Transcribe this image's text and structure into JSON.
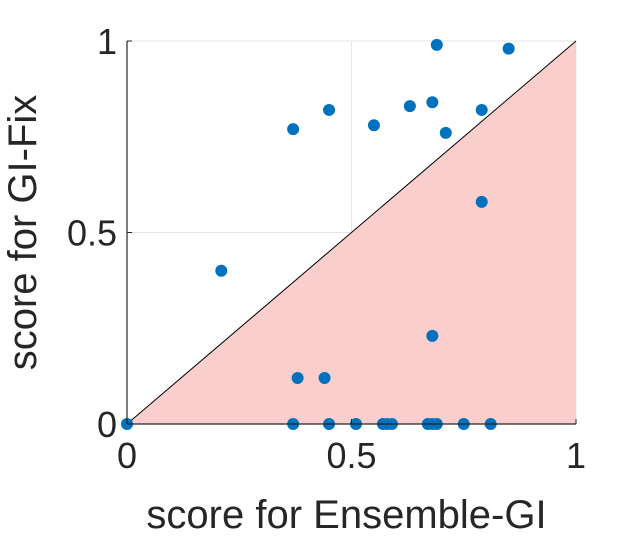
{
  "chart_data": {
    "type": "scatter",
    "title": "",
    "xlabel": "score for Ensemble-GI",
    "ylabel": "score for GI-Fix",
    "xlim": [
      0,
      1
    ],
    "ylim": [
      0,
      1
    ],
    "xticks": [
      "0",
      "0.5",
      "1"
    ],
    "yticks": [
      "0",
      "0.5",
      "1"
    ],
    "grid": true,
    "legend": "none",
    "reference_line": "y = x",
    "shaded_region": "below y = x",
    "colors": {
      "points": "#0072BD",
      "shade": "#FBC9C9",
      "axes": "#262626",
      "grid": "#E6E6E6"
    },
    "series": [
      {
        "points": [
          [
            0.0,
            0.0
          ],
          [
            0.21,
            0.4
          ],
          [
            0.37,
            0.77
          ],
          [
            0.45,
            0.82
          ],
          [
            0.55,
            0.78
          ],
          [
            0.63,
            0.83
          ],
          [
            0.68,
            0.84
          ],
          [
            0.69,
            0.99
          ],
          [
            0.71,
            0.76
          ],
          [
            0.79,
            0.82
          ],
          [
            0.85,
            0.98
          ],
          [
            0.79,
            0.58
          ],
          [
            0.68,
            0.23
          ],
          [
            0.38,
            0.12
          ],
          [
            0.44,
            0.12
          ],
          [
            0.37,
            0.0
          ],
          [
            0.45,
            0.0
          ],
          [
            0.51,
            0.0
          ],
          [
            0.57,
            0.0
          ],
          [
            0.58,
            0.0
          ],
          [
            0.59,
            0.0
          ],
          [
            0.67,
            0.0
          ],
          [
            0.68,
            0.0
          ],
          [
            0.69,
            0.0
          ],
          [
            0.75,
            0.0
          ],
          [
            0.81,
            0.0
          ]
        ]
      }
    ]
  }
}
